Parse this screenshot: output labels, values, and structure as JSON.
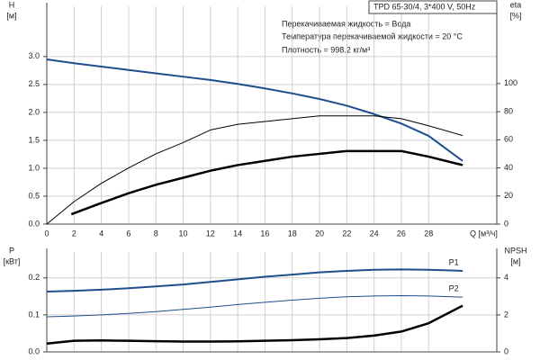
{
  "chart_data": [
    {
      "type": "line",
      "title": "TPD 65-30/4, 3*400 V, 50Hz",
      "annotations": [
        "Перекачиваемая жидкость = Вода",
        "Температура перекачиваемой жидкости = 20 °C",
        "Плотность = 998.2 кг/м³"
      ],
      "y_label": "H",
      "y_unit": "[м]",
      "y2_label": "eta",
      "y2_unit": "[%]",
      "x_label": "Q [м³/ч]",
      "xlim": [
        0,
        33
      ],
      "xticks": [
        0,
        2,
        4,
        6,
        8,
        10,
        12,
        14,
        16,
        18,
        20,
        22,
        24,
        26,
        28
      ],
      "ylim": [
        0,
        3.9
      ],
      "yticks": [
        {
          "value": 0,
          "label": "0.0"
        },
        {
          "value": 0.5,
          "label": "0.5"
        },
        {
          "value": 1,
          "label": "1.0"
        },
        {
          "value": 1.5,
          "label": "1.5"
        },
        {
          "value": 2,
          "label": "2.0"
        },
        {
          "value": 2.5,
          "label": "2.5"
        },
        {
          "value": 3,
          "label": "3.0"
        }
      ],
      "y2lim": [
        0,
        155
      ],
      "y2ticks": [
        0,
        20,
        40,
        60,
        80,
        100
      ],
      "grid": true,
      "series": [
        {
          "color": "#1f4e8c",
          "line_width": 2,
          "x": [
            0,
            2,
            4,
            6,
            8,
            10,
            12,
            14,
            16,
            18,
            20,
            22,
            24,
            26,
            28,
            30.5
          ],
          "values": [
            2.95,
            2.88,
            2.82,
            2.76,
            2.7,
            2.64,
            2.58,
            2.51,
            2.43,
            2.34,
            2.24,
            2.12,
            1.97,
            1.8,
            1.58,
            1.13
          ]
        },
        {
          "color": "#000000",
          "line_width": 1,
          "axis": "y2",
          "x": [
            0,
            2,
            4,
            6,
            8,
            10,
            12,
            14,
            16,
            18,
            20,
            22,
            24,
            26,
            28,
            30.5
          ],
          "values": [
            0,
            16,
            29,
            40,
            50,
            58,
            67,
            71,
            73,
            75,
            77,
            77,
            77,
            75,
            70,
            63
          ]
        },
        {
          "color": "#000000",
          "line_width": 2.5,
          "axis": "y2",
          "x": [
            1.8,
            4,
            6,
            8,
            10,
            12,
            14,
            16,
            18,
            20,
            22,
            24,
            26,
            28,
            30.5
          ],
          "values": [
            7,
            15,
            22,
            28,
            33,
            38,
            42,
            45,
            48,
            50,
            52,
            52,
            52,
            48,
            42
          ]
        }
      ]
    },
    {
      "type": "line",
      "y_label": "P",
      "y_unit": "[кВт]",
      "y2_label": "NPSH",
      "y2_unit": "[м]",
      "xlim": [
        0,
        33
      ],
      "xticks": [
        0,
        2,
        4,
        6,
        8,
        10,
        12,
        14,
        16,
        18,
        20,
        22,
        24,
        26,
        28
      ],
      "x_tick_labels": false,
      "ylim": [
        0,
        0.27
      ],
      "yticks": [
        {
          "value": 0,
          "label": "0.0"
        },
        {
          "value": 0.1,
          "label": "0.1"
        },
        {
          "value": 0.2,
          "label": "0.2"
        }
      ],
      "y2lim": [
        0,
        5.4
      ],
      "y2ticks": [
        0,
        2,
        4
      ],
      "grid": true,
      "series": [
        {
          "name": "P1",
          "color": "#1f4e8c",
          "line_width": 2,
          "x": [
            0,
            2,
            4,
            6,
            8,
            10,
            12,
            14,
            16,
            18,
            20,
            22,
            24,
            26,
            28,
            30.5
          ],
          "values": [
            0.163,
            0.165,
            0.168,
            0.172,
            0.177,
            0.182,
            0.189,
            0.196,
            0.203,
            0.209,
            0.215,
            0.219,
            0.222,
            0.223,
            0.222,
            0.219
          ]
        },
        {
          "name": "P2",
          "color": "#1f4e8c",
          "line_width": 1,
          "x": [
            0,
            2,
            4,
            6,
            8,
            10,
            12,
            14,
            16,
            18,
            20,
            22,
            24,
            26,
            28,
            30.5
          ],
          "values": [
            0.095,
            0.097,
            0.1,
            0.104,
            0.109,
            0.115,
            0.121,
            0.128,
            0.134,
            0.14,
            0.145,
            0.149,
            0.151,
            0.152,
            0.151,
            0.148
          ]
        },
        {
          "color": "#000000",
          "line_width": 2.5,
          "axis": "y2",
          "x": [
            0,
            2,
            4,
            6,
            8,
            10,
            12,
            14,
            16,
            18,
            20,
            22,
            24,
            26,
            28,
            30.5
          ],
          "values": [
            0.45,
            0.6,
            0.62,
            0.6,
            0.58,
            0.56,
            0.56,
            0.57,
            0.6,
            0.63,
            0.68,
            0.75,
            0.88,
            1.1,
            1.55,
            2.5
          ]
        }
      ]
    }
  ]
}
